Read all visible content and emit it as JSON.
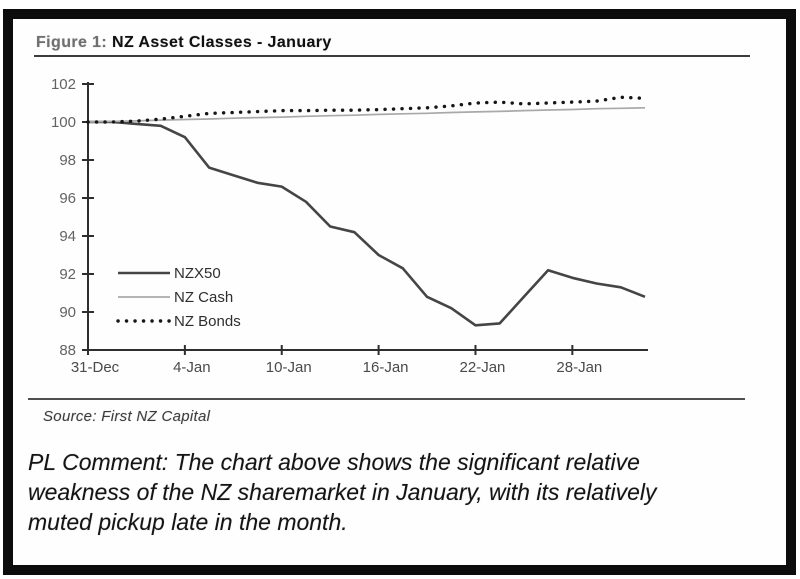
{
  "figure": {
    "label": "Figure 1:",
    "title": "NZ Asset Classes - January"
  },
  "source_text": "Source: First NZ Capital",
  "comment": {
    "lines": [
      "PL Comment:  The chart above shows the significant relative",
      "weakness of the NZ sharemarket in January, with its relatively",
      "muted pickup late in the month."
    ]
  },
  "colors": {
    "frame": "#0c0c0c",
    "title_label": "#6f6f6f",
    "title_text": "#101010",
    "axis": "#2e2e2e",
    "y_tick_label": "#636363",
    "x_tick_label": "#4a4a4a",
    "legend_text": "#2e2e2e"
  },
  "chart_data": {
    "type": "line",
    "title": "NZ Asset Classes - January",
    "xlabel": "",
    "ylabel": "",
    "grid": false,
    "legend_position": "inside-lower-left",
    "ylim": [
      88,
      102
    ],
    "y_ticks": [
      88,
      90,
      92,
      94,
      96,
      98,
      100,
      102
    ],
    "x_tick_labels": [
      "31-Dec",
      "4-Jan",
      "10-Jan",
      "16-Jan",
      "22-Jan",
      "28-Jan"
    ],
    "x_tick_indices": [
      0,
      4,
      8,
      12,
      16,
      20
    ],
    "series": [
      {
        "name": "NZX50",
        "style": "solid-thick",
        "color": "#454545",
        "values": [
          100.0,
          100.0,
          99.9,
          99.8,
          99.2,
          97.6,
          97.2,
          96.8,
          96.6,
          95.8,
          94.5,
          94.2,
          93.0,
          92.3,
          90.8,
          90.2,
          89.3,
          89.4,
          90.8,
          92.2,
          91.8,
          91.5,
          91.3,
          90.8
        ]
      },
      {
        "name": "NZ Cash",
        "style": "solid-thin",
        "color": "#a9a9a9",
        "values": [
          100.0,
          100.03,
          100.06,
          100.1,
          100.13,
          100.16,
          100.2,
          100.23,
          100.26,
          100.3,
          100.33,
          100.36,
          100.4,
          100.43,
          100.46,
          100.5,
          100.53,
          100.56,
          100.6,
          100.63,
          100.66,
          100.7,
          100.72,
          100.75
        ]
      },
      {
        "name": "NZ Bonds",
        "style": "dotted",
        "color": "#161616",
        "values": [
          100.0,
          100.0,
          100.05,
          100.15,
          100.3,
          100.45,
          100.5,
          100.55,
          100.6,
          100.6,
          100.62,
          100.62,
          100.65,
          100.7,
          100.75,
          100.85,
          101.0,
          101.05,
          100.95,
          101.0,
          101.05,
          101.1,
          101.3,
          101.25
        ]
      }
    ]
  }
}
